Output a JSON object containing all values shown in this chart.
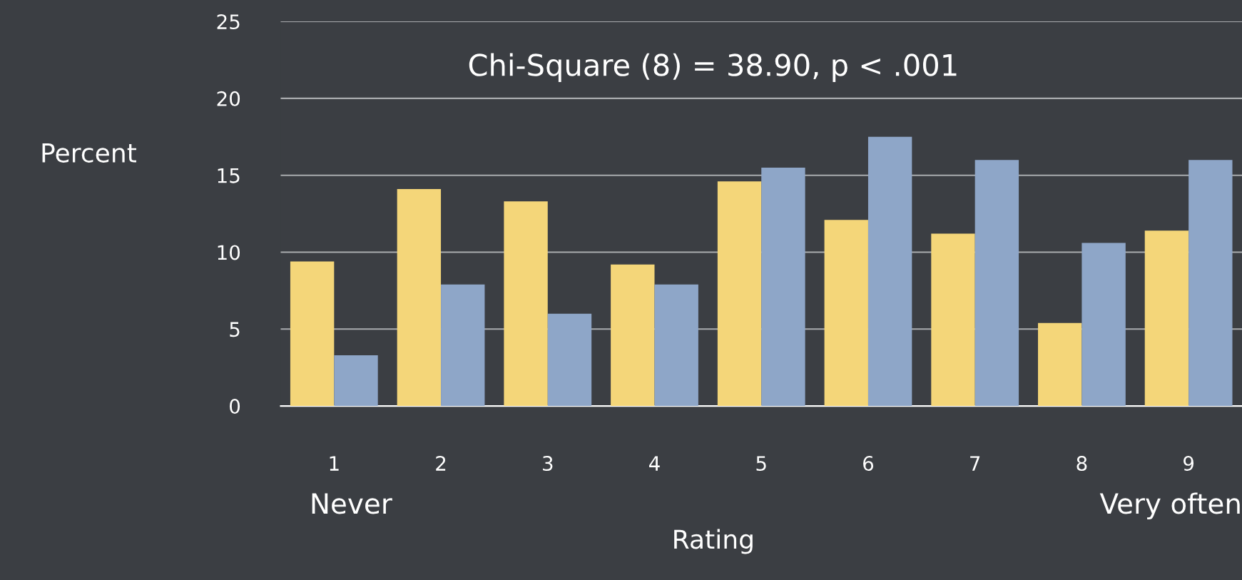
{
  "chart_data": {
    "type": "bar",
    "xlabel": "Rating",
    "ylabel": "Percent",
    "categories": [
      "1",
      "2",
      "3",
      "4",
      "5",
      "6",
      "7",
      "8",
      "9"
    ],
    "series": [
      {
        "color": "#f4d679",
        "values": [
          9.4,
          14.1,
          13.3,
          9.2,
          14.6,
          12.1,
          11.2,
          5.4,
          11.4
        ]
      },
      {
        "color": "#8ea6c8",
        "values": [
          3.3,
          7.9,
          6.0,
          7.9,
          15.5,
          17.5,
          16.0,
          10.6,
          16.0
        ]
      }
    ],
    "ylim": [
      0,
      25
    ],
    "yticks": [
      0,
      5,
      10,
      15,
      20,
      25
    ],
    "grid": "y",
    "legend": false,
    "annotations": [
      "Chi-Square (8) = 38.90, p < .001",
      "Never",
      "Very often"
    ]
  }
}
